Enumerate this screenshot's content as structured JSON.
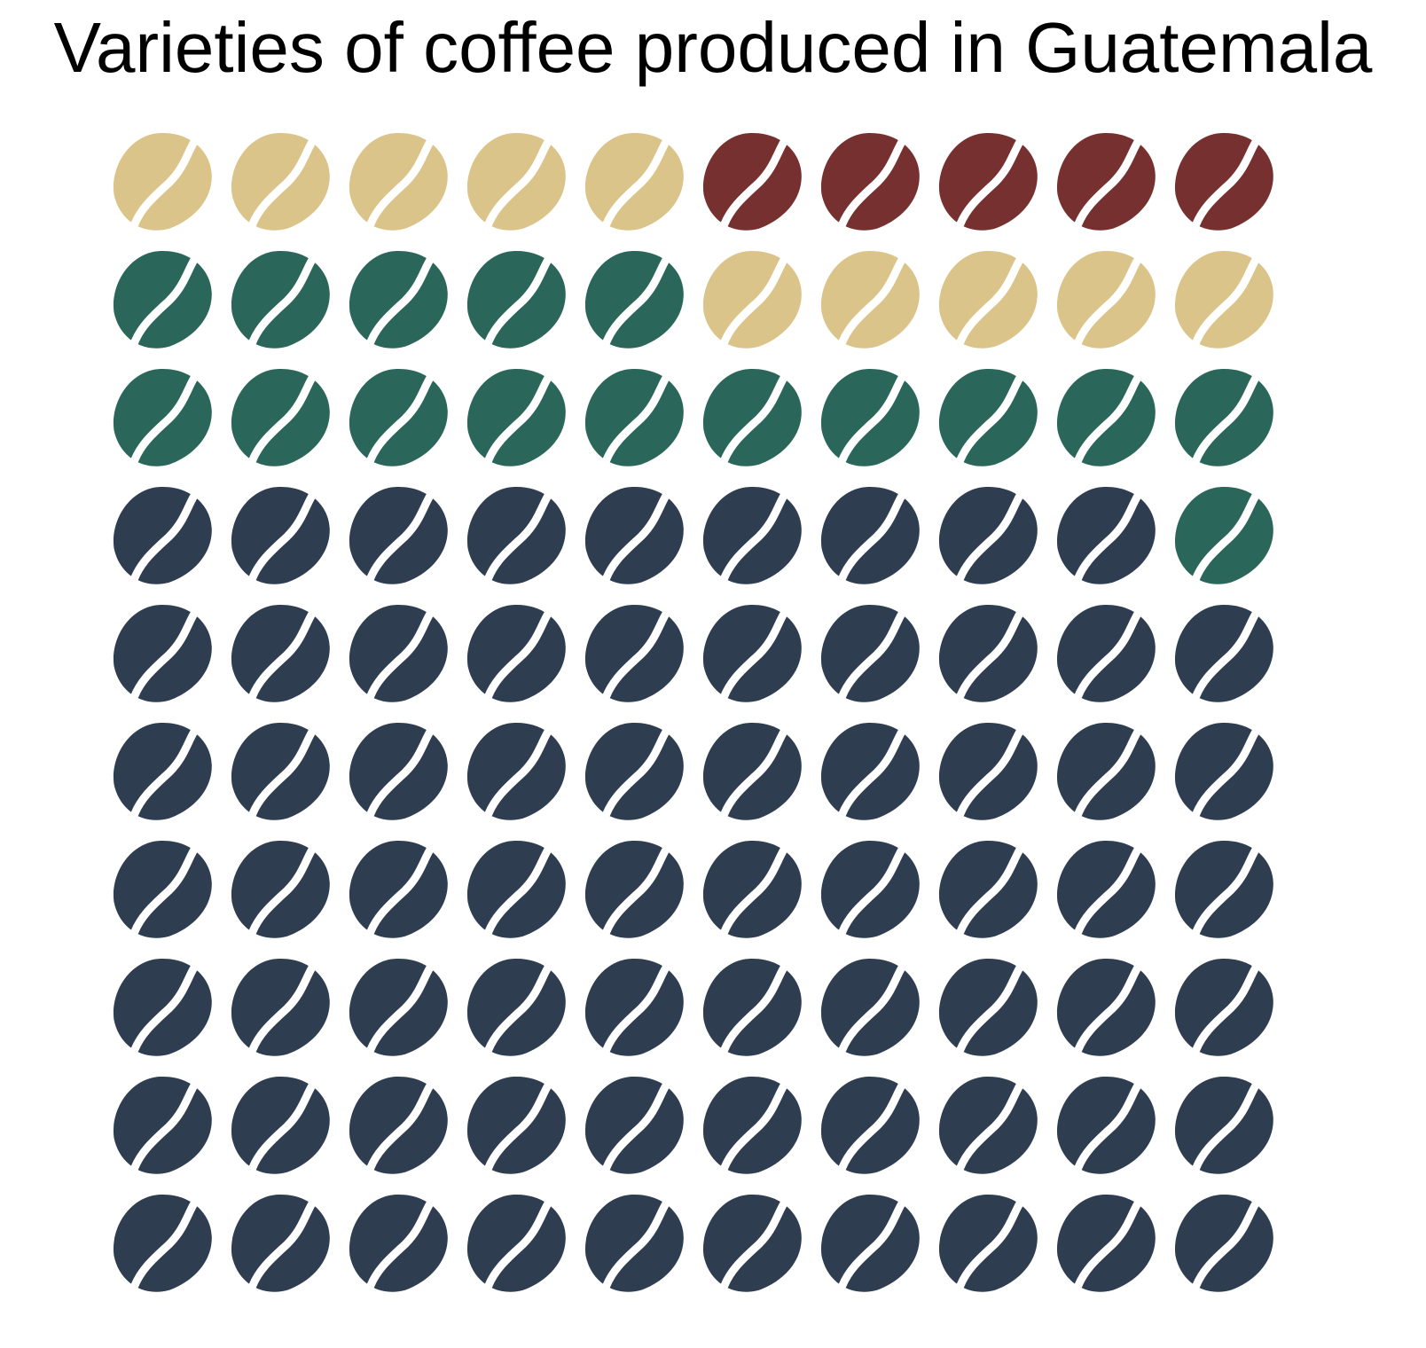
{
  "chart_data": {
    "type": "waffle",
    "title": "Varieties of coffee produced in Guatemala",
    "grid": {
      "rows": 10,
      "cols": 10
    },
    "fill_order": "bottom-to-top, left-to-right",
    "icon": "coffee-bean-icon",
    "series": [
      {
        "color": "#2e3d4f",
        "value": 69
      },
      {
        "color": "#2a6659",
        "value": 16
      },
      {
        "color": "#dbc48a",
        "value": 10
      },
      {
        "color": "#76302f",
        "value": 5
      }
    ]
  }
}
